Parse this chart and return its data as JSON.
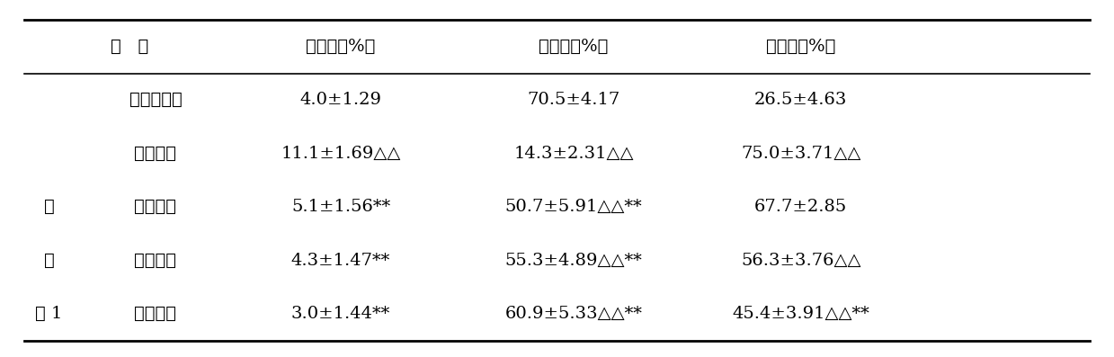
{
  "header": [
    "组   别",
    "球带状（%）",
    "束状带（%）",
    "网状带（%）"
  ],
  "col1_left": [
    "",
    "",
    "实",
    "施",
    "例 1"
  ],
  "col1_right": [
    "青年对照组",
    "更年期组",
    "低剂量组",
    "中剂量组",
    "高剂量组"
  ],
  "col2": [
    "4.0±1.29",
    "11.1±1.69△△",
    "5.1±1.56**",
    "4.3±1.47**",
    "3.0±1.44**"
  ],
  "col3": [
    "70.5±4.17",
    "14.3±2.31△△",
    "50.7±5.91△△**",
    "55.3±4.89△△**",
    "60.9±5.33△△**"
  ],
  "col4": [
    "26.5±4.63",
    "75.0±3.71△△",
    "67.7±2.85",
    "56.3±3.76△△",
    "45.4±3.91△△**"
  ],
  "background_color": "#ffffff",
  "text_color": "#000000",
  "header_fontsize": 14,
  "cell_fontsize": 14,
  "fig_width": 12.39,
  "fig_height": 3.97
}
